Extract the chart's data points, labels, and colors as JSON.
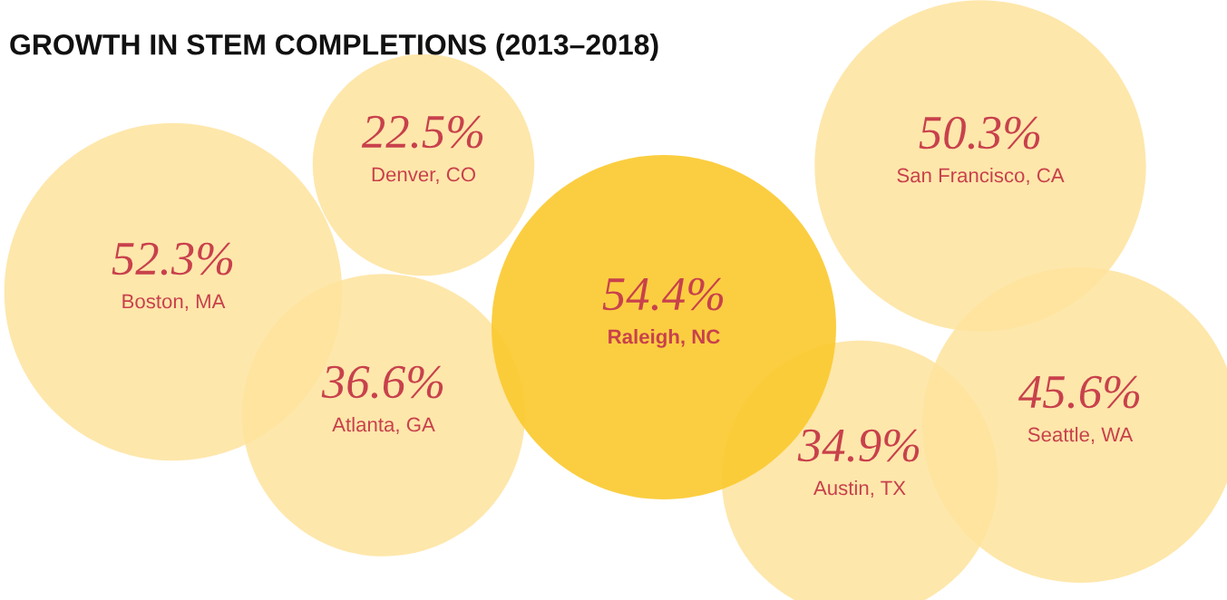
{
  "chart_data": {
    "type": "other",
    "title": "GROWTH IN STEM COMPLETIONS (2013–2018)",
    "categories": [
      "Boston, MA",
      "Denver, CO",
      "Atlanta, GA",
      "Raleigh, NC",
      "San Francisco, CA",
      "Austin, TX",
      "Seattle, WA"
    ],
    "values": [
      52.3,
      22.5,
      36.6,
      54.4,
      50.3,
      34.9,
      45.6
    ],
    "value_labels": [
      "52.3%",
      "22.5%",
      "36.6%",
      "54.4%",
      "50.3%",
      "34.9%",
      "45.6%"
    ],
    "colors": [
      "#fee39c",
      "#fee39c",
      "#fee39c",
      "#fbc92c",
      "#fee39c",
      "#fee39c",
      "#fee39c"
    ]
  }
}
